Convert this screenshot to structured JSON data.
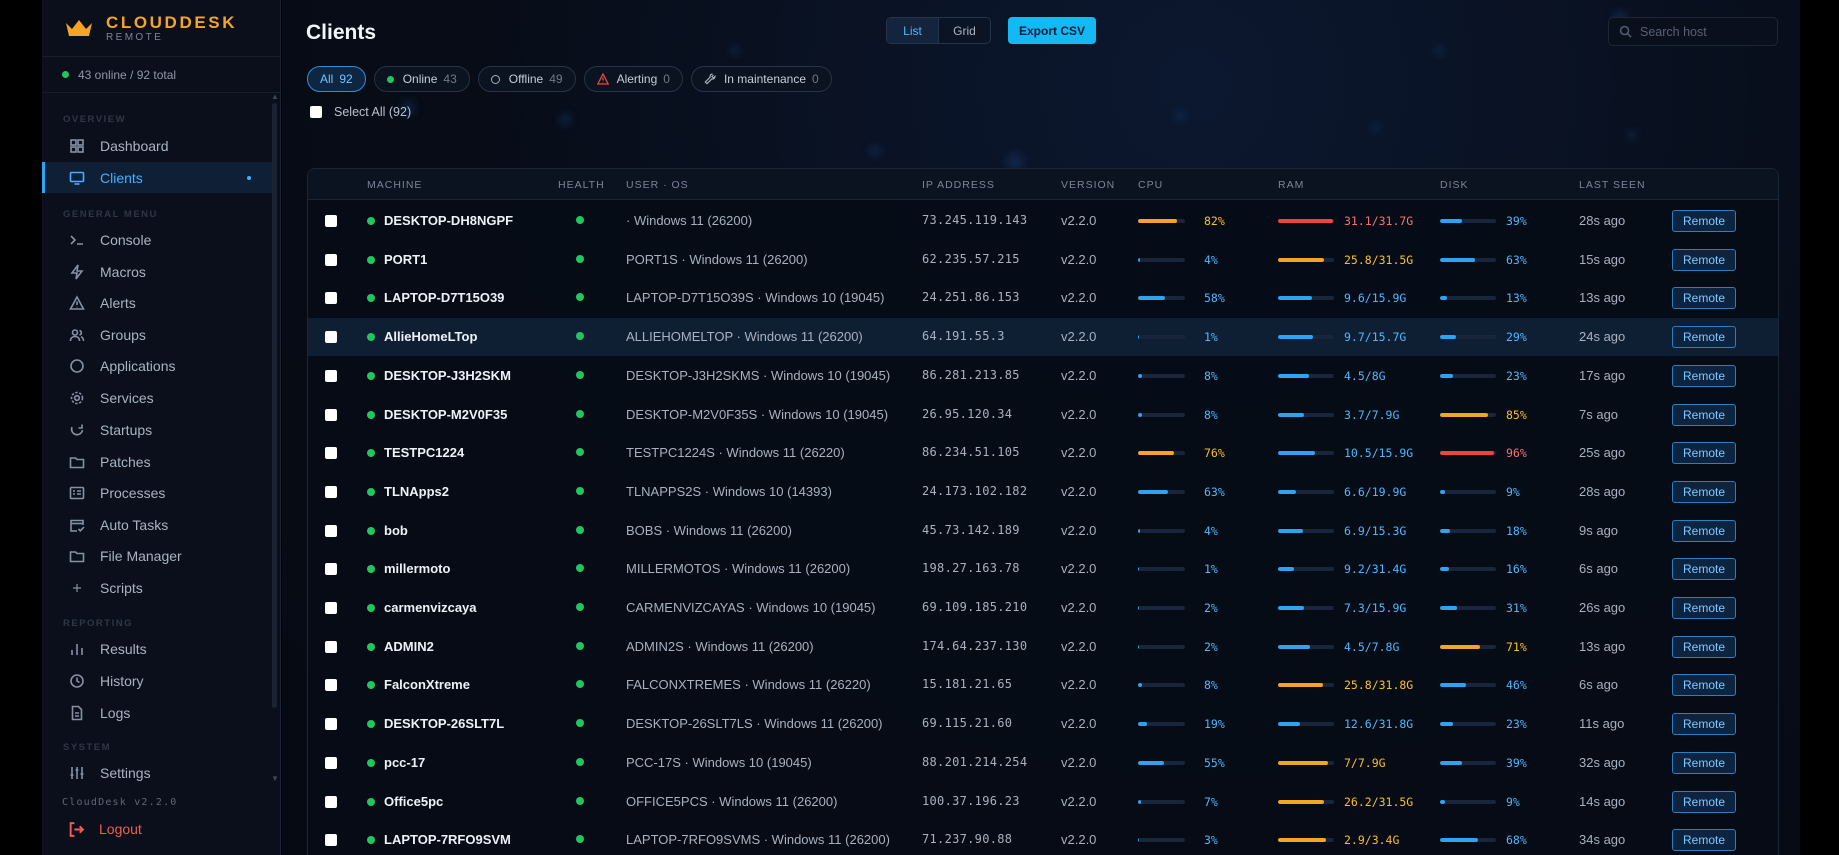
{
  "brand": {
    "name": "CLOUDDESK",
    "sub": "REMOTE"
  },
  "status": {
    "text": "43 online / 92 total"
  },
  "nav": {
    "section_overview": "OVERVIEW",
    "section_general": "GENERAL MENU",
    "section_reporting": "REPORTING",
    "section_system": "SYSTEM",
    "dashboard": "Dashboard",
    "clients": "Clients",
    "console": "Console",
    "macros": "Macros",
    "alerts": "Alerts",
    "groups": "Groups",
    "applications": "Applications",
    "services": "Services",
    "startups": "Startups",
    "patches": "Patches",
    "processes": "Processes",
    "auto_tasks": "Auto Tasks",
    "file_manager": "File Manager",
    "scripts": "Scripts",
    "results": "Results",
    "history": "History",
    "logs": "Logs",
    "settings": "Settings",
    "version": "CloudDesk v2.2.0",
    "logout": "Logout"
  },
  "header": {
    "title": "Clients",
    "view_list": "List",
    "view_grid": "Grid",
    "export": "Export CSV",
    "search_placeholder": "Search host"
  },
  "filters": {
    "all": {
      "label": "All",
      "count": "92"
    },
    "online": {
      "label": "Online",
      "count": "43"
    },
    "offline": {
      "label": "Offline",
      "count": "49"
    },
    "alerting": {
      "label": "Alerting",
      "count": "0"
    },
    "maintenance": {
      "label": "In maintenance",
      "count": "0"
    }
  },
  "select_all": "Select All (92)",
  "columns": {
    "machine": "MACHINE",
    "health": "HEALTH",
    "user_os": "USER · OS",
    "ip": "IP ADDRESS",
    "version": "VERSION",
    "cpu": "CPU",
    "ram": "RAM",
    "disk": "DISK",
    "last_seen": "LAST SEEN"
  },
  "remote_label": "Remote",
  "colors": {
    "blue": "#2ea3f2",
    "orange": "#f5a524",
    "red": "#ef4444",
    "green": "#22c55e"
  },
  "rows": [
    {
      "name": "DESKTOP-DH8NGPF",
      "user_os": "· Windows 11 (26200)",
      "ip": "73.245.119.143",
      "version": "v2.2.0",
      "cpu": 82,
      "cpu_text": "82%",
      "ram": 98,
      "ram_text": "31.1/31.7G",
      "disk": 39,
      "disk_text": "39%",
      "seen": "28s ago"
    },
    {
      "name": "PORT1",
      "user_os": "PORT1S · Windows 11 (26200)",
      "ip": "62.235.57.215",
      "version": "v2.2.0",
      "cpu": 4,
      "cpu_text": "4%",
      "ram": 82,
      "ram_text": "25.8/31.5G",
      "disk": 63,
      "disk_text": "63%",
      "seen": "15s ago"
    },
    {
      "name": "LAPTOP-D7T15O39",
      "user_os": "LAPTOP-D7T15O39S · Windows 10 (19045)",
      "ip": "24.251.86.153",
      "version": "v2.2.0",
      "cpu": 58,
      "cpu_text": "58%",
      "ram": 60,
      "ram_text": "9.6/15.9G",
      "disk": 13,
      "disk_text": "13%",
      "seen": "13s ago"
    },
    {
      "name": "AllieHomeLTop",
      "user_os": "ALLIEHOMELTOP · Windows 11 (26200)",
      "ip": "64.191.55.3",
      "version": "v2.2.0",
      "cpu": 1,
      "cpu_text": "1%",
      "ram": 62,
      "ram_text": "9.7/15.7G",
      "disk": 29,
      "disk_text": "29%",
      "seen": "24s ago"
    },
    {
      "name": "DESKTOP-J3H2SKM",
      "user_os": "DESKTOP-J3H2SKMS · Windows 10 (19045)",
      "ip": "86.281.213.85",
      "version": "v2.2.0",
      "cpu": 8,
      "cpu_text": "8%",
      "ram": 56,
      "ram_text": "4.5/8G",
      "disk": 23,
      "disk_text": "23%",
      "seen": "17s ago"
    },
    {
      "name": "DESKTOP-M2V0F35",
      "user_os": "DESKTOP-M2V0F35S · Windows 10 (19045)",
      "ip": "26.95.120.34",
      "version": "v2.2.0",
      "cpu": 8,
      "cpu_text": "8%",
      "ram": 47,
      "ram_text": "3.7/7.9G",
      "disk": 85,
      "disk_text": "85%",
      "seen": "7s ago"
    },
    {
      "name": "TESTPC1224",
      "user_os": "TESTPC1224S · Windows 11 (26220)",
      "ip": "86.234.51.105",
      "version": "v2.2.0",
      "cpu": 76,
      "cpu_text": "76%",
      "ram": 66,
      "ram_text": "10.5/15.9G",
      "disk": 96,
      "disk_text": "96%",
      "seen": "25s ago"
    },
    {
      "name": "TLNApps2",
      "user_os": "TLNAPPS2S · Windows 10 (14393)",
      "ip": "24.173.102.182",
      "version": "v2.2.0",
      "cpu": 63,
      "cpu_text": "63%",
      "ram": 33,
      "ram_text": "6.6/19.9G",
      "disk": 9,
      "disk_text": "9%",
      "seen": "28s ago"
    },
    {
      "name": "bob",
      "user_os": "BOBS · Windows 11 (26200)",
      "ip": "45.73.142.189",
      "version": "v2.2.0",
      "cpu": 4,
      "cpu_text": "4%",
      "ram": 45,
      "ram_text": "6.9/15.3G",
      "disk": 18,
      "disk_text": "18%",
      "seen": "9s ago"
    },
    {
      "name": "millermoto",
      "user_os": "MILLERMOTOS · Windows 11 (26200)",
      "ip": "198.27.163.78",
      "version": "v2.2.0",
      "cpu": 1,
      "cpu_text": "1%",
      "ram": 29,
      "ram_text": "9.2/31.4G",
      "disk": 16,
      "disk_text": "16%",
      "seen": "6s ago"
    },
    {
      "name": "carmenvizcaya",
      "user_os": "CARMENVIZCAYAS · Windows 10 (19045)",
      "ip": "69.109.185.210",
      "version": "v2.2.0",
      "cpu": 2,
      "cpu_text": "2%",
      "ram": 46,
      "ram_text": "7.3/15.9G",
      "disk": 31,
      "disk_text": "31%",
      "seen": "26s ago"
    },
    {
      "name": "ADMIN2",
      "user_os": "ADMIN2S · Windows 11 (26200)",
      "ip": "174.64.237.130",
      "version": "v2.2.0",
      "cpu": 2,
      "cpu_text": "2%",
      "ram": 58,
      "ram_text": "4.5/7.8G",
      "disk": 71,
      "disk_text": "71%",
      "seen": "13s ago"
    },
    {
      "name": "FalconXtreme",
      "user_os": "FALCONXTREMES · Windows 11 (26220)",
      "ip": "15.181.21.65",
      "version": "v2.2.0",
      "cpu": 8,
      "cpu_text": "8%",
      "ram": 81,
      "ram_text": "25.8/31.8G",
      "disk": 46,
      "disk_text": "46%",
      "seen": "6s ago"
    },
    {
      "name": "DESKTOP-26SLT7L",
      "user_os": "DESKTOP-26SLT7LS · Windows 11 (26200)",
      "ip": "69.115.21.60",
      "version": "v2.2.0",
      "cpu": 19,
      "cpu_text": "19%",
      "ram": 40,
      "ram_text": "12.6/31.8G",
      "disk": 23,
      "disk_text": "23%",
      "seen": "11s ago"
    },
    {
      "name": "pcc-17",
      "user_os": "PCC-17S · Windows 10 (19045)",
      "ip": "88.201.214.254",
      "version": "v2.2.0",
      "cpu": 55,
      "cpu_text": "55%",
      "ram": 89,
      "ram_text": "7/7.9G",
      "disk": 39,
      "disk_text": "39%",
      "seen": "32s ago"
    },
    {
      "name": "Office5pc",
      "user_os": "OFFICE5PCS · Windows 11 (26200)",
      "ip": "100.37.196.23",
      "version": "v2.2.0",
      "cpu": 7,
      "cpu_text": "7%",
      "ram": 83,
      "ram_text": "26.2/31.5G",
      "disk": 9,
      "disk_text": "9%",
      "seen": "14s ago"
    },
    {
      "name": "LAPTOP-7RFO9SVM",
      "user_os": "LAPTOP-7RFO9SVMS · Windows 11 (26200)",
      "ip": "71.237.90.88",
      "version": "v2.2.0",
      "cpu": 3,
      "cpu_text": "3%",
      "ram": 85,
      "ram_text": "2.9/3.4G",
      "disk": 68,
      "disk_text": "68%",
      "seen": "34s ago"
    }
  ]
}
